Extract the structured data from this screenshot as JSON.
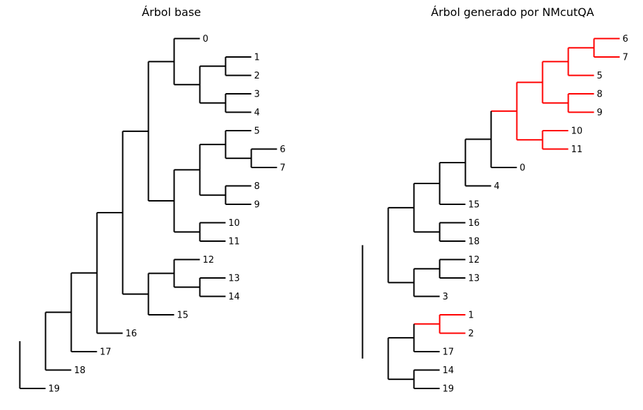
{
  "colors": {
    "default": "#000000",
    "highlight": "#ff0000"
  },
  "trees": [
    {
      "title": "Árbol base",
      "root": {
        "c": [
          {
            "c": [
              {
                "c": [
                  {
                    "c": [
                      {
                        "c": [
                          {
                            "c": [
                              {
                                "c": [
                                  {
                                    "l": "0"
                                  },
                                  {
                                    "c": [
                                      {
                                        "c": [
                                          {
                                            "l": "1"
                                          },
                                          {
                                            "l": "2"
                                          }
                                        ]
                                      },
                                      {
                                        "c": [
                                          {
                                            "l": "3"
                                          },
                                          {
                                            "l": "4"
                                          }
                                        ]
                                      }
                                    ]
                                  }
                                ]
                              },
                              {
                                "c": [
                                  {
                                    "c": [
                                      {
                                        "c": [
                                          {
                                            "l": "5"
                                          },
                                          {
                                            "c": [
                                              {
                                                "l": "6"
                                              },
                                              {
                                                "l": "7"
                                              }
                                            ]
                                          }
                                        ]
                                      },
                                      {
                                        "c": [
                                          {
                                            "l": "8"
                                          },
                                          {
                                            "l": "9"
                                          }
                                        ]
                                      }
                                    ]
                                  },
                                  {
                                    "c": [
                                      {
                                        "l": "10"
                                      },
                                      {
                                        "l": "11"
                                      }
                                    ]
                                  }
                                ]
                              }
                            ]
                          },
                          {
                            "c": [
                              {
                                "c": [
                                  {
                                    "l": "12"
                                  },
                                  {
                                    "c": [
                                      {
                                        "l": "13"
                                      },
                                      {
                                        "l": "14"
                                      }
                                    ]
                                  }
                                ]
                              },
                              {
                                "l": "15"
                              }
                            ]
                          }
                        ]
                      },
                      {
                        "l": "16"
                      }
                    ]
                  },
                  {
                    "l": "17"
                  }
                ]
              },
              {
                "l": "18"
              }
            ]
          },
          {
            "l": "19"
          }
        ]
      }
    },
    {
      "title": "Árbol generado por NMcutQA",
      "root": {
        "c": [
          {
            "c": [
              {
                "c": [
                  {
                    "c": [
                      {
                        "c": [
                          {
                            "c": [
                              {
                                "red": true,
                                "c": [
                                  {
                                    "red": true,
                                    "c": [
                                      {
                                        "red": true,
                                        "c": [
                                          {
                                            "red": true,
                                            "c": [
                                              {
                                                "red": true,
                                                "l": "6"
                                              },
                                              {
                                                "red": true,
                                                "l": "7"
                                              }
                                            ]
                                          },
                                          {
                                            "red": true,
                                            "l": "5"
                                          }
                                        ]
                                      },
                                      {
                                        "red": true,
                                        "c": [
                                          {
                                            "red": true,
                                            "l": "8"
                                          },
                                          {
                                            "red": true,
                                            "l": "9"
                                          }
                                        ]
                                      }
                                    ]
                                  },
                                  {
                                    "red": true,
                                    "c": [
                                      {
                                        "red": true,
                                        "l": "10"
                                      },
                                      {
                                        "red": true,
                                        "l": "11"
                                      }
                                    ]
                                  }
                                ]
                              },
                              {
                                "l": "0"
                              }
                            ]
                          },
                          {
                            "l": "4"
                          }
                        ]
                      },
                      {
                        "l": "15"
                      }
                    ]
                  },
                  {
                    "c": [
                      {
                        "l": "16"
                      },
                      {
                        "l": "18"
                      }
                    ]
                  }
                ]
              },
              {
                "c": [
                  {
                    "c": [
                      {
                        "l": "12"
                      },
                      {
                        "l": "13"
                      }
                    ]
                  },
                  {
                    "l": "3"
                  }
                ]
              }
            ]
          },
          {
            "c": [
              {
                "c": [
                  {
                    "red": true,
                    "c": [
                      {
                        "red": true,
                        "l": "1"
                      },
                      {
                        "red": true,
                        "l": "2"
                      }
                    ]
                  },
                  {
                    "l": "17"
                  }
                ]
              },
              {
                "c": [
                  {
                    "l": "14"
                  },
                  {
                    "l": "19"
                  }
                ]
              }
            ]
          }
        ]
      }
    }
  ]
}
